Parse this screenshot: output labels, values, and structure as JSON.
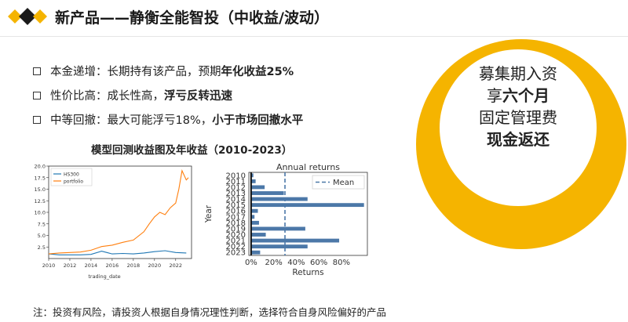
{
  "title": "新产品——静衡全能智投（中收益/波动）",
  "bullets": [
    {
      "label": "本金递增：",
      "text": "长期持有该产品，预期",
      "bold": "年化收益25%"
    },
    {
      "label": "性价比高：",
      "text": "成长性高，",
      "bold": "浮亏反转迅速"
    },
    {
      "label": "中等回撤：",
      "text": "最大可能浮亏18%，",
      "bold": "小于市场回撤水平"
    }
  ],
  "chart_section_title": "模型回测收益图及年收益（2010-2023）",
  "circle": {
    "line1": "募集期入资",
    "line2_prefix": "享",
    "line2_bold": "六个月",
    "line3": "固定管理费",
    "line4": "现金返还"
  },
  "note": "注：投资有风险，请投资人根据自身情况理性判断，选择符合自身风险偏好的产品",
  "colors": {
    "accent": "#f5b400",
    "hs300": "#1f77b4",
    "portfolio": "#ff7f0e",
    "bar": "#4c78a8"
  },
  "chart_data": [
    {
      "type": "line",
      "xlabel": "trading_date",
      "ylabel": "",
      "x_ticks": [
        "2010",
        "2012",
        "2014",
        "2016",
        "2018",
        "2020",
        "2022"
      ],
      "y_ticks": [
        2.5,
        5.0,
        7.5,
        10.0,
        12.5,
        15.0,
        17.5,
        20.0
      ],
      "ylim": [
        0,
        20
      ],
      "xlim": [
        2010,
        2023.5
      ],
      "legend": "top-left",
      "series": [
        {
          "name": "HS300",
          "x": [
            2010,
            2011,
            2012,
            2013,
            2014,
            2015,
            2015.5,
            2016,
            2017,
            2018,
            2019,
            2020,
            2021,
            2022,
            2023
          ],
          "values": [
            1.0,
            0.8,
            0.8,
            0.8,
            0.9,
            1.6,
            1.3,
            1.0,
            1.1,
            1.0,
            1.2,
            1.5,
            1.7,
            1.3,
            1.2
          ]
        },
        {
          "name": "portfolio",
          "x": [
            2010,
            2011,
            2012,
            2013,
            2014,
            2015,
            2016,
            2017,
            2018,
            2019,
            2019.5,
            2020,
            2020.5,
            2021,
            2021.5,
            2022,
            2022.3,
            2022.6,
            2023,
            2023.2
          ],
          "values": [
            1.0,
            1.2,
            1.3,
            1.4,
            1.8,
            2.6,
            2.9,
            3.5,
            4.0,
            5.8,
            7.5,
            9.0,
            10.0,
            9.5,
            11.0,
            12.0,
            15.0,
            19.0,
            17.0,
            17.5
          ]
        }
      ]
    },
    {
      "type": "bar",
      "orientation": "horizontal",
      "title": "Annual returns",
      "xlabel": "Returns",
      "ylabel": "Year",
      "categories": [
        "2010",
        "2011",
        "2012",
        "2013",
        "2014",
        "2015",
        "2016",
        "2017",
        "2018",
        "2019",
        "2020",
        "2021",
        "2022",
        "2023"
      ],
      "values": [
        2,
        4,
        12,
        29,
        50,
        100,
        6,
        3,
        7,
        48,
        13,
        78,
        50,
        8
      ],
      "xlim": [
        -2,
        103
      ],
      "x_ticks": [
        "0%",
        "20%",
        "40%",
        "60%",
        "80%"
      ],
      "mean": 30,
      "legend": {
        "label": "Mean",
        "position": "top-right"
      }
    }
  ]
}
